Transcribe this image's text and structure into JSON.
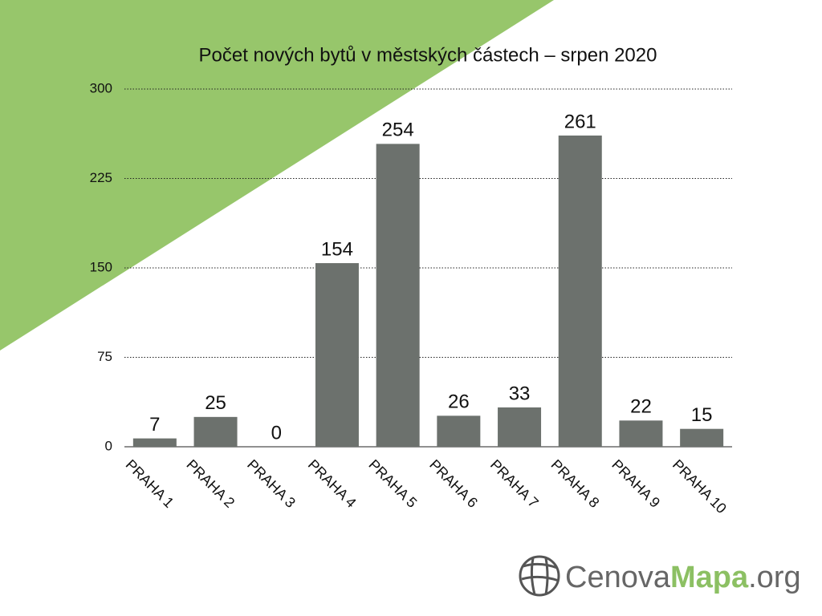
{
  "chart_data": {
    "type": "bar",
    "title": "Počet nových bytů v městských částech – srpen 2020",
    "categories": [
      "PRAHA 1",
      "PRAHA 2",
      "PRAHA 3",
      "PRAHA 4",
      "PRAHA 5",
      "PRAHA 6",
      "PRAHA 7",
      "PRAHA 8",
      "PRAHA 9",
      "PRAHA 10"
    ],
    "values": [
      7,
      25,
      0,
      154,
      254,
      26,
      33,
      261,
      22,
      15
    ],
    "color": "#6c716d",
    "ylim": [
      0,
      300
    ],
    "yticks": [
      0,
      75,
      150,
      225,
      300
    ],
    "grid": true
  },
  "logo": [
    "Cenova",
    "Mapa",
    ".org"
  ]
}
